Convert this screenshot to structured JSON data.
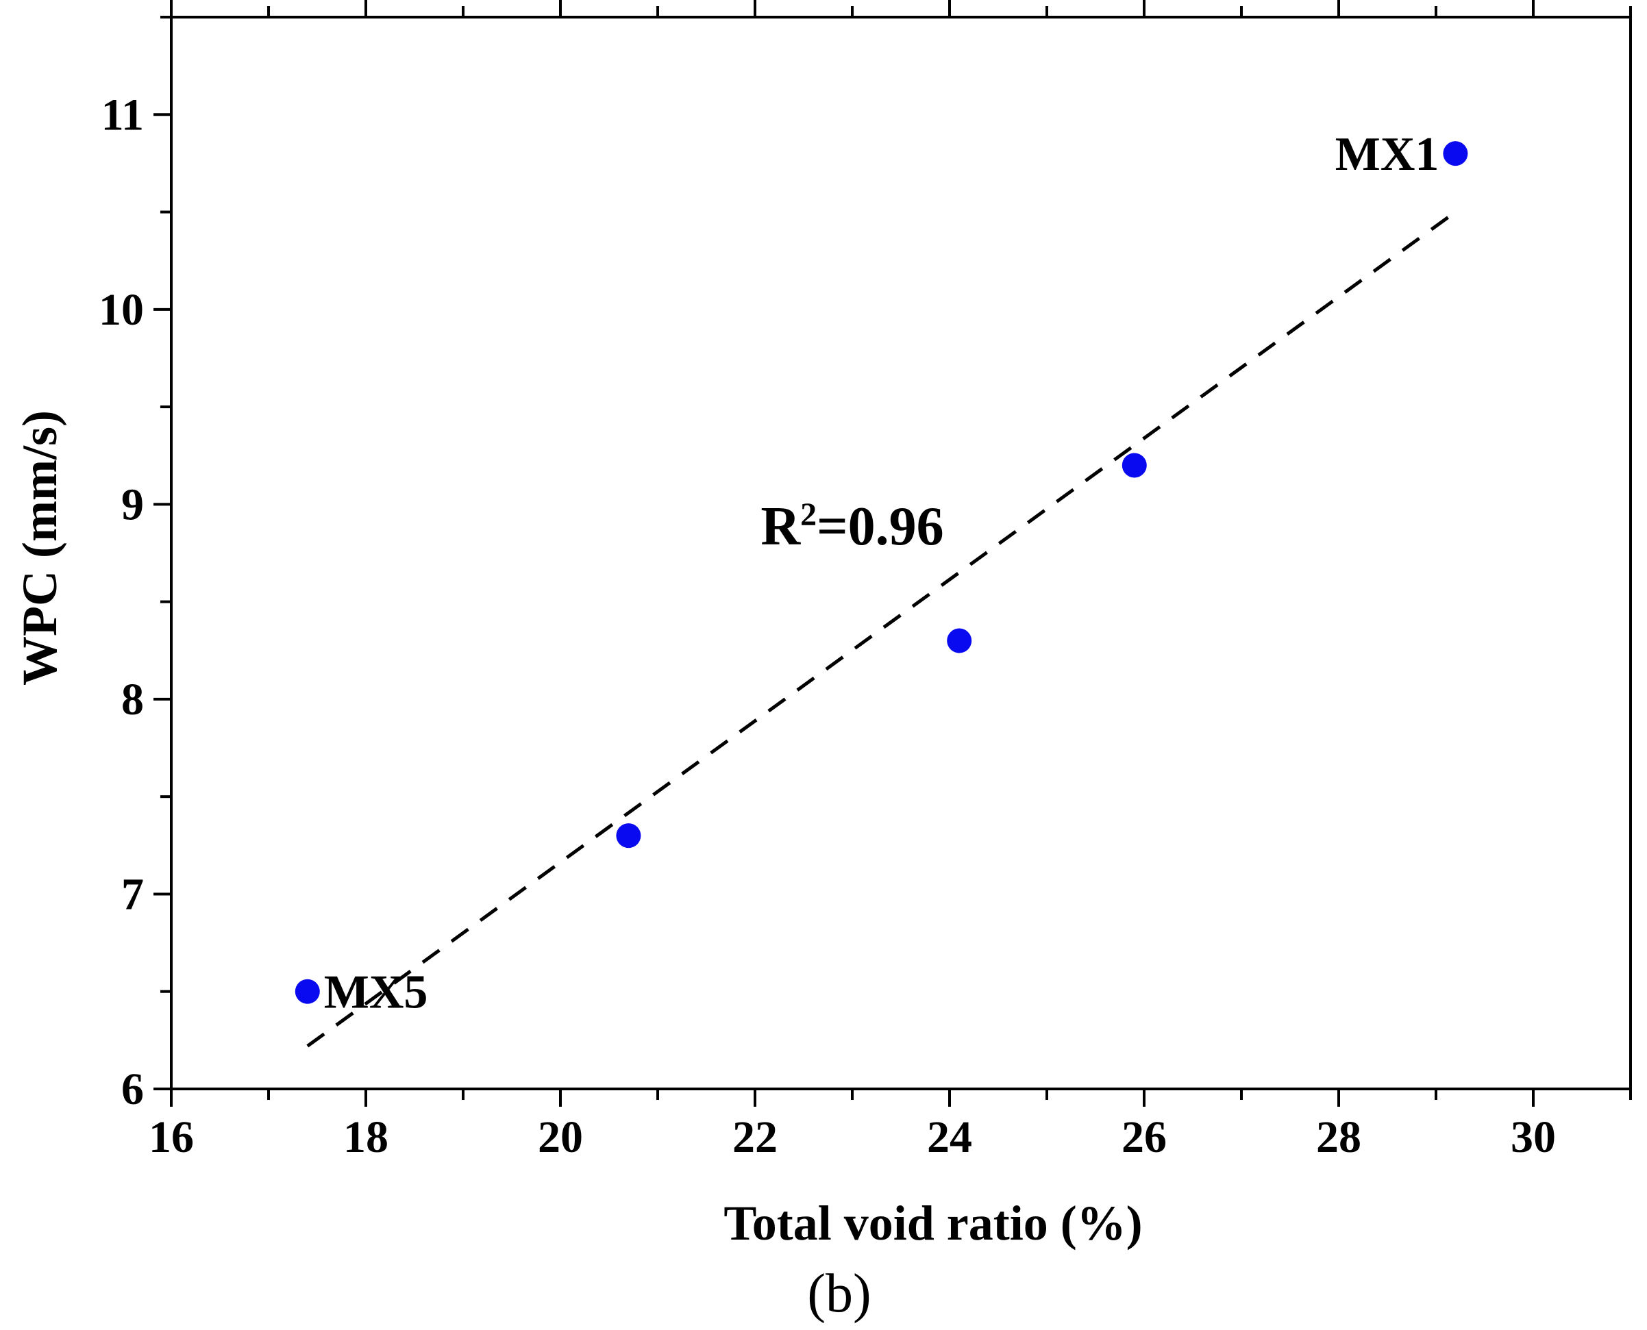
{
  "chart_data": {
    "type": "scatter",
    "title": "",
    "xlabel": "Total void ratio (%)",
    "ylabel": "WPC (mm/s)",
    "xlim": [
      16,
      31
    ],
    "ylim": [
      6,
      11.5
    ],
    "xticks": [
      16,
      18,
      20,
      22,
      24,
      26,
      28,
      30
    ],
    "yticks": [
      6,
      7,
      8,
      9,
      10,
      11
    ],
    "xtick_labels": [
      "16",
      "18",
      "20",
      "22",
      "24",
      "26",
      "28",
      "30"
    ],
    "ytick_labels": [
      "6",
      "7",
      "8",
      "9",
      "10",
      "11"
    ],
    "grid": false,
    "series": [
      {
        "name": "samples",
        "color": "#0a0af0",
        "points": [
          {
            "x": 17.4,
            "y": 6.5
          },
          {
            "x": 20.7,
            "y": 7.3
          },
          {
            "x": 24.1,
            "y": 8.3
          },
          {
            "x": 25.9,
            "y": 9.2
          },
          {
            "x": 29.2,
            "y": 10.8
          }
        ]
      }
    ],
    "fit_line": {
      "style": "dashed",
      "color": "#000000",
      "x": [
        17.4,
        29.2
      ],
      "y": [
        6.22,
        10.5
      ]
    },
    "annotations": [
      {
        "text": "MX1",
        "x": 29.2,
        "y": 10.8,
        "anchor": "left"
      },
      {
        "text": "MX5",
        "x": 17.4,
        "y": 6.5,
        "anchor": "right"
      }
    ],
    "r2": {
      "prefix": "R",
      "sup": "2",
      "suffix": "=0.96",
      "x": 23.0,
      "y": 8.9
    }
  },
  "panel_label": "(b)"
}
